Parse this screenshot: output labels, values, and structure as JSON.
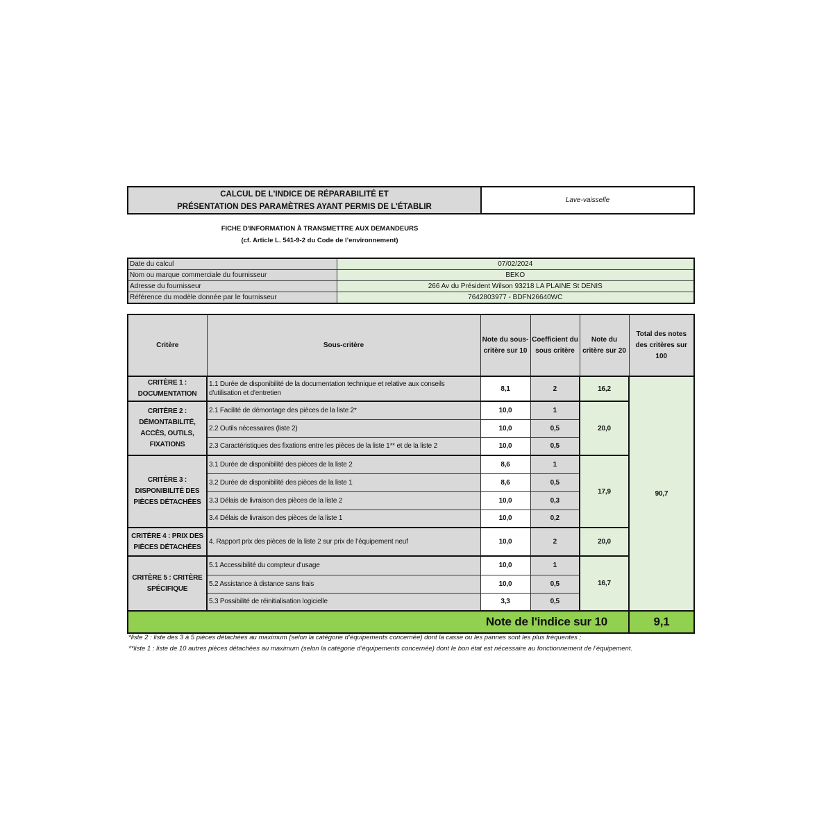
{
  "header": {
    "title_line1": "CALCUL DE L'INDICE DE RÉPARABILITÉ ET",
    "title_line2": "PRÉSENTATION DES PARAMÈTRES AYANT PERMIS DE L'ÉTABLIR",
    "product": "Lave-vaisselle"
  },
  "subtitle": {
    "line1": "FICHE D'INFORMATION À TRANSMETTRE AUX DEMANDEURS",
    "line2": "(cf. Article L. 541-9-2 du Code de l’environnement)"
  },
  "info": [
    {
      "label": "Date du calcul",
      "value": "07/02/2024"
    },
    {
      "label": "Nom ou marque commerciale du fournisseur",
      "value": "BEKO"
    },
    {
      "label": "Adresse du fournisseur",
      "value": "266 Av du Président Wilson 93218 LA PLAINE St DENIS"
    },
    {
      "label": "Référence du modèle donnée par le fournisseur",
      "value": "7642803977 - BDFN26640WC"
    }
  ],
  "table": {
    "headers": [
      "Critère",
      "Sous-critère",
      "Note du sous-critère sur 10",
      "Coefficient du sous critère",
      "Note du critère sur 20",
      "Total des notes des critères sur 100"
    ],
    "criteria": [
      {
        "label": "CRITÈRE 1 : DOCUMENTATION",
        "score": "16,2",
        "subs": [
          {
            "label": "1.1 Durée de disponibilité de la documentation technique et relative aux conseils d'utilisation et d'entretien",
            "note": "8,1",
            "coef": "2"
          }
        ]
      },
      {
        "label": "CRITÈRE 2 : DÉMONTABILITÉ, ACCÈS, OUTILS, FIXATIONS",
        "score": "20,0",
        "subs": [
          {
            "label": "2.1 Facilité de démontage des pièces de la liste 2*",
            "note": "10,0",
            "coef": "1"
          },
          {
            "label": "2.2 Outils nécessaires (liste 2)",
            "note": "10,0",
            "coef": "0,5"
          },
          {
            "label": "2.3 Caractéristiques des fixations entre les pièces de la liste 1** et de la liste 2",
            "note": "10,0",
            "coef": "0,5"
          }
        ]
      },
      {
        "label": "CRITÈRE 3 : DISPONIBILITÉ DES PIÈCES DÉTACHÉES",
        "score": "17,9",
        "subs": [
          {
            "label": "3.1 Durée de disponibilité des pièces de la liste 2",
            "note": "8,6",
            "coef": "1"
          },
          {
            "label": "3.2 Durée de disponibilité des pièces de la liste 1",
            "note": "8,6",
            "coef": "0,5"
          },
          {
            "label": "3.3 Délais de livraison des pièces de la liste 2",
            "note": "10,0",
            "coef": "0,3"
          },
          {
            "label": "3.4 Délais de livraison des pièces de la liste 1",
            "note": "10,0",
            "coef": "0,2"
          }
        ]
      },
      {
        "label": "CRITÈRE 4 : PRIX DES PIÈCES DÉTACHÉES",
        "score": "20,0",
        "subs": [
          {
            "label": "4. Rapport prix des pièces de la liste 2 sur prix de l’équipement neuf",
            "note": "10,0",
            "coef": "2"
          }
        ]
      },
      {
        "label": "CRITÈRE 5 : CRITÈRE SPÉCIFIQUE",
        "score": "16,7",
        "subs": [
          {
            "label": "5.1 Accessibilité du compteur d'usage",
            "note": "10,0",
            "coef": "1"
          },
          {
            "label": "5.2 Assistance à distance sans frais",
            "note": "10,0",
            "coef": "0,5"
          },
          {
            "label": "5.3 Possibilité de réinitialisation logicielle",
            "note": "3,3",
            "coef": "0,5"
          }
        ]
      }
    ],
    "total_100": "90,7",
    "index_label": "Note de l'indice sur 10",
    "index_value": "9,1"
  },
  "footnotes": [
    "*liste 2 : liste des 3 à 5 pièces détachées au maximum (selon la catégorie d’équipements concernée) dont la casse ou les pannes sont les plus fréquentes ;",
    "**liste 1 : liste de 10 autres pièces détachées au maximum (selon la catégorie d’équipements concernée) dont le bon état est nécessaire au fonctionnement de l’équipement."
  ],
  "colors": {
    "gray": "#d9d9d9",
    "light_green": "#e2efda",
    "green": "#92d050"
  }
}
